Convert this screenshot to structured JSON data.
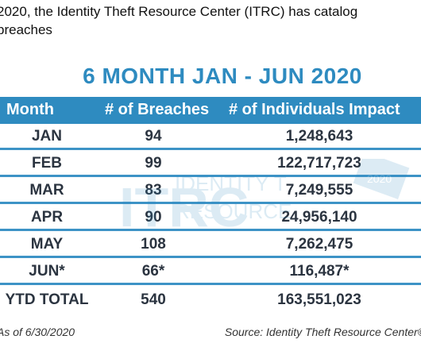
{
  "intro": {
    "line1": "2020, the Identity Theft Resource Center (ITRC) has catalog",
    "line2": "breaches"
  },
  "title": "6 MONTH JAN - JUN 2020",
  "table": {
    "headers": [
      "Month",
      "# of Breaches",
      "# of Individuals Impact"
    ],
    "rows": [
      {
        "month": "JAN",
        "breaches": "94",
        "individuals": "1,248,643"
      },
      {
        "month": "FEB",
        "breaches": "99",
        "individuals": "122,717,723"
      },
      {
        "month": "MAR",
        "breaches": "83",
        "individuals": "7,249,555"
      },
      {
        "month": "APR",
        "breaches": "90",
        "individuals": "24,956,140"
      },
      {
        "month": "MAY",
        "breaches": "108",
        "individuals": "7,262,475"
      },
      {
        "month": "JUN*",
        "breaches": "66*",
        "individuals": "116,487*"
      },
      {
        "month": "YTD TOTAL",
        "breaches": "540",
        "individuals": "163,551,023"
      }
    ]
  },
  "watermark": {
    "logo": "ITRC",
    "text1": "IDENTITY T",
    "text2": "RESOURCE",
    "year": "2020"
  },
  "footer": {
    "left": "As of 6/30/2020",
    "right": "Source: Identity Theft Resource Center©"
  },
  "colors": {
    "accent": "#2e8bc0",
    "row_rule": "#3d93c6"
  }
}
